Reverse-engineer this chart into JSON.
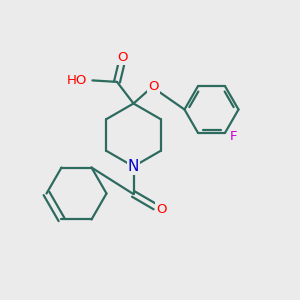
{
  "background_color": "#ebebeb",
  "bond_color": "#2d6b5e",
  "bond_width": 1.6,
  "atom_colors": {
    "O": "#ff0000",
    "N": "#0000cc",
    "F": "#cc00cc",
    "H": "#808080",
    "C": "#2d6b5e"
  },
  "font_size_atom": 9.5,
  "fig_size": [
    3.0,
    3.0
  ],
  "dpi": 100
}
